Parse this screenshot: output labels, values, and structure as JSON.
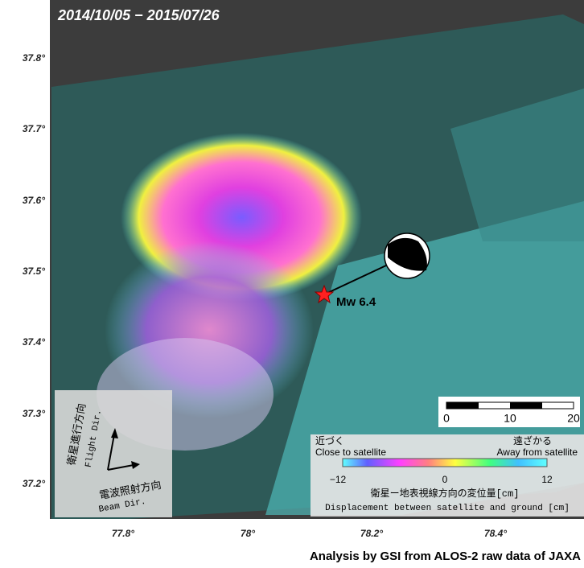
{
  "title": "2014/10/05 − 2015/07/26",
  "lat_ticks": [
    "37.8°",
    "37.7°",
    "37.6°",
    "37.5°",
    "37.4°",
    "37.3°",
    "37.2°"
  ],
  "lon_ticks": [
    "77.8°",
    "78°",
    "78.2°",
    "78.4°"
  ],
  "epicenter_label": "Mw 6.4",
  "scale_bar": [
    "0",
    "10",
    "20"
  ],
  "direction": {
    "flight_ja": "衛星進行方向",
    "flight_en": "Flight Dir.",
    "beam_ja": "電波照射方向",
    "beam_en": "Beam Dir."
  },
  "legend": {
    "close_ja": "近づく",
    "close_en": "Close to satellite",
    "away_ja": "遠ざかる",
    "away_en": "Away from satellite",
    "ticks": [
      "−12",
      "0",
      "12"
    ],
    "caption_ja": "衛星ー地表視線方向の変位量[cm]",
    "caption_en": "Displacement between satellite and ground [cm]"
  },
  "credit": "Analysis by GSI from ALOS-2 raw data of JAXA"
}
